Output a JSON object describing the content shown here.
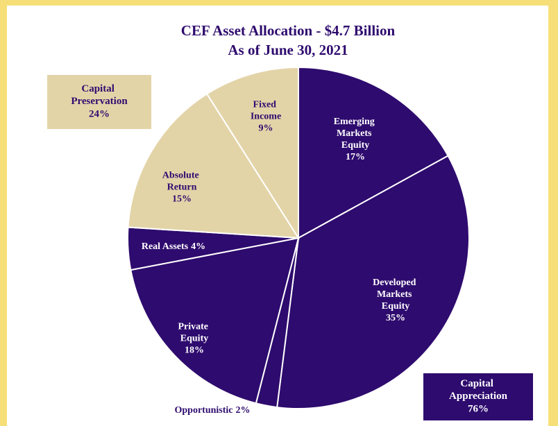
{
  "chart_data": {
    "type": "pie",
    "title": "CEF Asset Allocation - $4.7 Billion",
    "subtitle": "As of June 30, 2021",
    "categories": [
      "Emerging Markets Equity",
      "Developed Markets Equity",
      "Opportunistic",
      "Private Equity",
      "Real Assets",
      "Absolute Return",
      "Fixed Income"
    ],
    "values": [
      17,
      35,
      2,
      18,
      4,
      15,
      9
    ],
    "value_labels": [
      "17%",
      "35%",
      "2%",
      "18%",
      "4%",
      "15%",
      "9%"
    ],
    "colors": [
      "#2e0b6e",
      "#2e0b6e",
      "#2e0b6e",
      "#2e0b6e",
      "#2e0b6e",
      "#e3d4a8",
      "#e3d4a8"
    ],
    "groups": [
      {
        "name": "Capital Preservation",
        "label": "24%",
        "color": "#e3d4a8"
      },
      {
        "name": "Capital Appreciation",
        "label": "76%",
        "color": "#2e0b6e"
      }
    ]
  }
}
